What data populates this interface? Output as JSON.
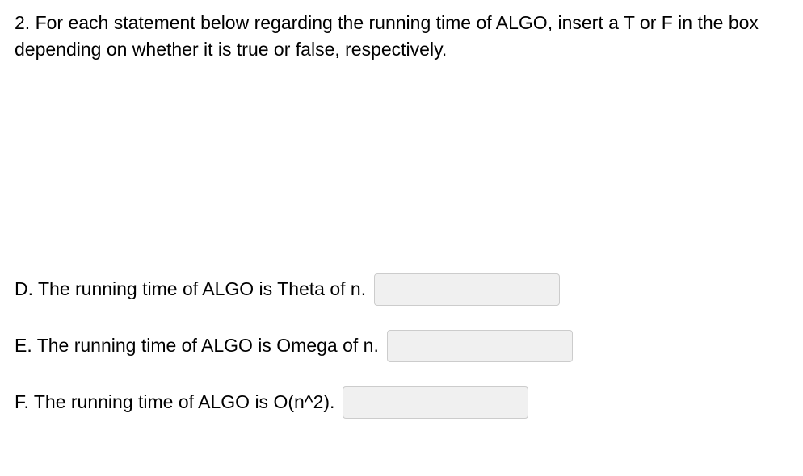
{
  "prompt": "2. For each statement below regarding the running time of ALGO, insert a T or F in the box depending on whether it is true or false, respectively.",
  "statements": {
    "d": {
      "label": "D. The running time of ALGO is Theta of n.",
      "value": ""
    },
    "e": {
      "label": "E. The running time of ALGO is Omega of n.",
      "value": ""
    },
    "f": {
      "label": "F. The running time of ALGO is O(n^2).",
      "value": ""
    }
  },
  "colors": {
    "background": "#ffffff",
    "text": "#000000",
    "input_bg": "#f0f0f0",
    "input_border": "#cccccc"
  },
  "typography": {
    "font_family": "Arial",
    "font_size_pt": 17
  }
}
